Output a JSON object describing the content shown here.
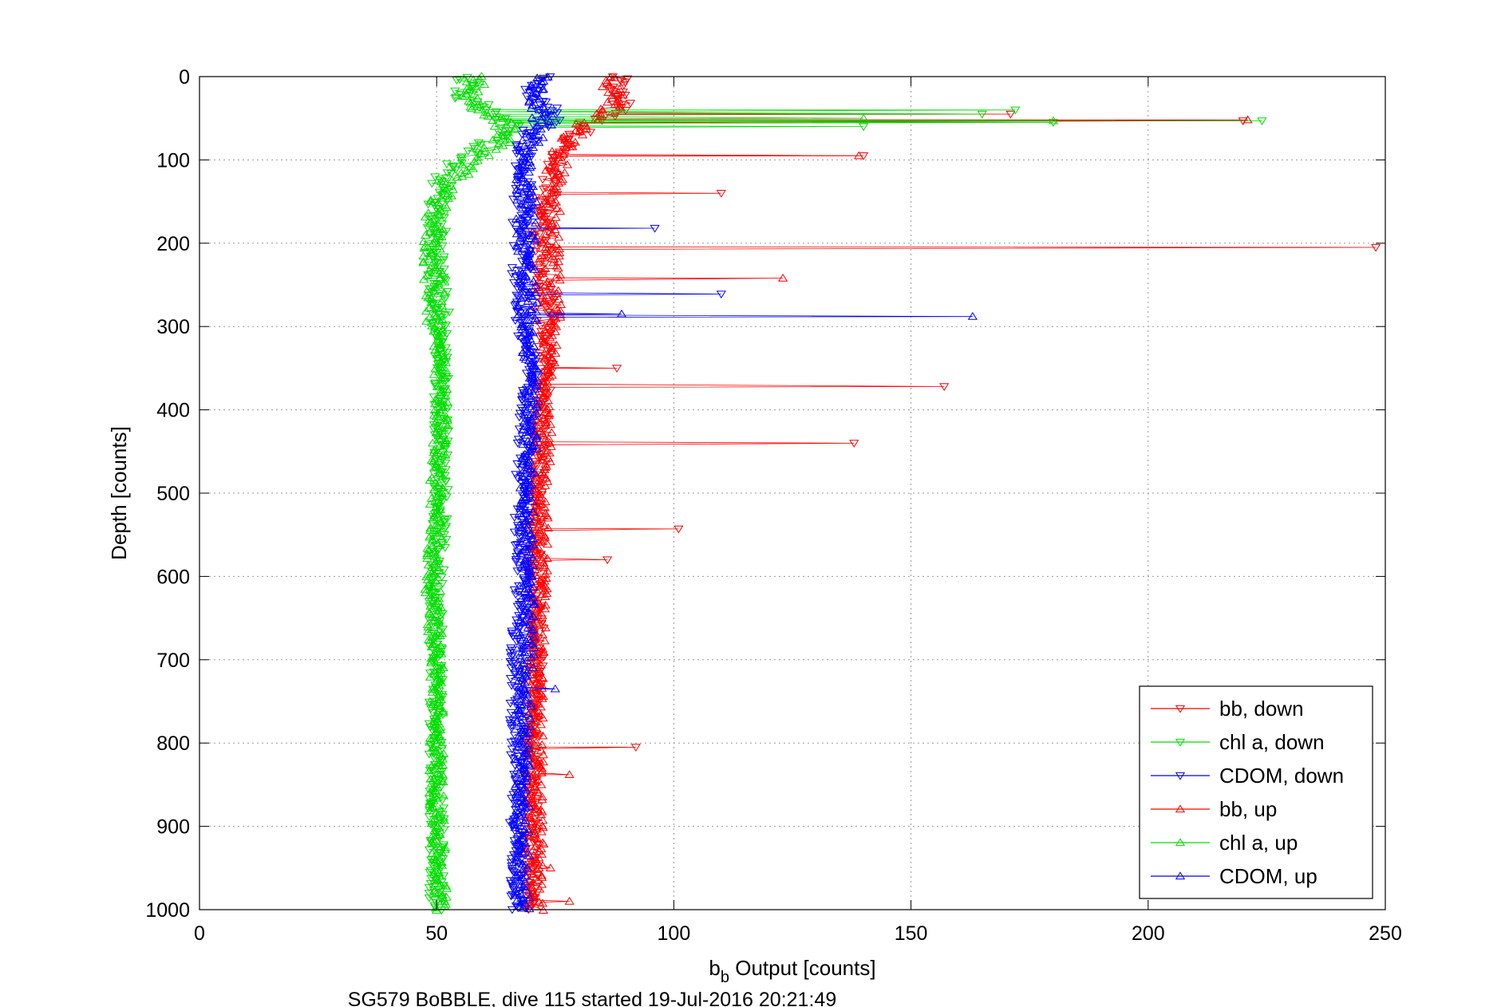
{
  "chart_data": {
    "type": "scatter",
    "xlabel_main": "b",
    "xlabel_sub": "b",
    "xlabel_rest": " Output [counts]",
    "ylabel": "Depth [counts]",
    "caption": "SG579 BoBBLE, dive 115 started 19-Jul-2016 20:21:49",
    "xlim": [
      0,
      250
    ],
    "ylim": [
      0,
      1000
    ],
    "y_reversed": true,
    "grid": true,
    "legend_position": "bottom-right",
    "xticks": [
      "0",
      "50",
      "100",
      "150",
      "200",
      "250"
    ],
    "yticks": [
      "0",
      "100",
      "200",
      "300",
      "400",
      "500",
      "600",
      "700",
      "800",
      "900",
      "1000"
    ],
    "colors": {
      "bb": "#ff0000",
      "chl": "#00dd00",
      "cdom": "#0000ff"
    },
    "series": [
      {
        "name": "bb, down",
        "color": "#ff0000",
        "marker": "triangle-down",
        "depth_top": 0,
        "depth_bottom": 1000,
        "profile": [
          [
            0,
            88
          ],
          [
            20,
            88
          ],
          [
            40,
            90
          ],
          [
            55,
            82
          ],
          [
            70,
            80
          ],
          [
            100,
            74
          ],
          [
            150,
            73
          ],
          [
            200,
            72
          ],
          [
            250,
            72
          ],
          [
            300,
            73
          ],
          [
            350,
            73
          ],
          [
            400,
            72
          ],
          [
            500,
            71
          ],
          [
            600,
            71
          ],
          [
            700,
            71
          ],
          [
            800,
            70
          ],
          [
            900,
            70
          ],
          [
            1000,
            70
          ]
        ],
        "spikes": [
          [
            45,
            171
          ],
          [
            53,
            220
          ],
          [
            95,
            140
          ],
          [
            140,
            110
          ],
          [
            205,
            248
          ],
          [
            372,
            157
          ],
          [
            440,
            138
          ],
          [
            543,
            101
          ],
          [
            580,
            86
          ],
          [
            805,
            92
          ],
          [
            350,
            88
          ]
        ]
      },
      {
        "name": "chl a, down",
        "color": "#00dd00",
        "marker": "triangle-down",
        "depth_top": 0,
        "depth_bottom": 1000,
        "profile": [
          [
            0,
            55
          ],
          [
            10,
            57
          ],
          [
            25,
            55
          ],
          [
            40,
            62
          ],
          [
            60,
            66
          ],
          [
            75,
            62
          ],
          [
            90,
            58
          ],
          [
            110,
            52
          ],
          [
            130,
            51
          ],
          [
            160,
            50
          ],
          [
            200,
            50
          ],
          [
            250,
            50
          ],
          [
            300,
            51
          ],
          [
            400,
            51
          ],
          [
            500,
            51
          ],
          [
            600,
            50
          ],
          [
            700,
            50
          ],
          [
            800,
            50
          ],
          [
            900,
            50
          ],
          [
            1000,
            50
          ]
        ],
        "spikes": [
          [
            40,
            172
          ],
          [
            45,
            165
          ],
          [
            53,
            224
          ],
          [
            55,
            180
          ],
          [
            60,
            140
          ]
        ]
      },
      {
        "name": "CDOM, down",
        "color": "#0000ff",
        "marker": "triangle-down",
        "depth_top": 0,
        "depth_bottom": 1000,
        "profile": [
          [
            0,
            72
          ],
          [
            20,
            70
          ],
          [
            35,
            73
          ],
          [
            50,
            75
          ],
          [
            65,
            70
          ],
          [
            80,
            69
          ],
          [
            100,
            68
          ],
          [
            200,
            68
          ],
          [
            300,
            68
          ],
          [
            350,
            70
          ],
          [
            400,
            69
          ],
          [
            500,
            68
          ],
          [
            600,
            68
          ],
          [
            700,
            67
          ],
          [
            800,
            67
          ],
          [
            900,
            67
          ],
          [
            1000,
            67
          ]
        ],
        "spikes": [
          [
            182,
            96
          ],
          [
            261,
            110
          ]
        ]
      },
      {
        "name": "bb, up",
        "color": "#ff0000",
        "marker": "triangle-up",
        "depth_top": 0,
        "depth_bottom": 1000,
        "profile": [
          [
            0,
            86
          ],
          [
            30,
            88
          ],
          [
            60,
            80
          ],
          [
            90,
            76
          ],
          [
            150,
            74
          ],
          [
            200,
            74
          ],
          [
            300,
            74
          ],
          [
            400,
            73
          ],
          [
            500,
            72
          ],
          [
            600,
            72
          ],
          [
            700,
            71
          ],
          [
            800,
            71
          ],
          [
            900,
            71
          ],
          [
            1000,
            71
          ]
        ],
        "spikes": [
          [
            52,
            221
          ],
          [
            95,
            139
          ],
          [
            242,
            123
          ],
          [
            838,
            78
          ],
          [
            950,
            74
          ],
          [
            990,
            78
          ]
        ]
      },
      {
        "name": "chl a, up",
        "color": "#00dd00",
        "marker": "triangle-up",
        "depth_top": 0,
        "depth_bottom": 1000,
        "profile": [
          [
            0,
            58
          ],
          [
            15,
            58
          ],
          [
            30,
            56
          ],
          [
            50,
            63
          ],
          [
            70,
            65
          ],
          [
            95,
            60
          ],
          [
            120,
            54
          ],
          [
            150,
            50
          ],
          [
            200,
            49
          ],
          [
            300,
            50
          ],
          [
            400,
            51
          ],
          [
            500,
            50
          ],
          [
            600,
            49
          ],
          [
            700,
            50
          ],
          [
            800,
            50
          ],
          [
            900,
            50
          ],
          [
            1000,
            51
          ]
        ],
        "spikes": [
          [
            53,
            180
          ],
          [
            50,
            140
          ]
        ]
      },
      {
        "name": "CDOM, up",
        "color": "#0000ff",
        "marker": "triangle-up",
        "depth_top": 0,
        "depth_bottom": 1000,
        "profile": [
          [
            0,
            73
          ],
          [
            20,
            71
          ],
          [
            40,
            72
          ],
          [
            60,
            72
          ],
          [
            80,
            70
          ],
          [
            100,
            69
          ],
          [
            200,
            69
          ],
          [
            300,
            69
          ],
          [
            350,
            70
          ],
          [
            400,
            70
          ],
          [
            500,
            69
          ],
          [
            600,
            69
          ],
          [
            700,
            69
          ],
          [
            800,
            68
          ],
          [
            900,
            68
          ],
          [
            1000,
            68
          ]
        ],
        "spikes": [
          [
            288,
            163
          ],
          [
            285,
            89
          ],
          [
            735,
            75
          ]
        ]
      }
    ]
  }
}
